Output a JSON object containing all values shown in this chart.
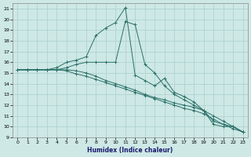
{
  "xlabel": "Humidex (Indice chaleur)",
  "ylabel": "",
  "xlim": [
    -0.5,
    23.5
  ],
  "ylim": [
    9.0,
    21.5
  ],
  "yticks": [
    9,
    10,
    11,
    12,
    13,
    14,
    15,
    16,
    17,
    18,
    19,
    20,
    21
  ],
  "xticks": [
    0,
    1,
    2,
    3,
    4,
    5,
    6,
    7,
    8,
    9,
    10,
    11,
    12,
    13,
    14,
    15,
    16,
    17,
    18,
    19,
    20,
    21,
    22,
    23
  ],
  "bg_color": "#cde8e5",
  "grid_color": "#aacfcc",
  "line_color": "#2a7068",
  "series": [
    {
      "x": [
        0,
        1,
        2,
        3,
        4,
        5,
        6,
        7,
        8,
        9,
        10,
        11,
        12,
        13,
        14,
        15,
        16,
        17,
        18,
        19,
        20,
        21,
        22,
        23
      ],
      "y": [
        15.3,
        15.3,
        15.3,
        15.3,
        15.5,
        16.0,
        16.2,
        16.5,
        18.5,
        19.2,
        19.7,
        21.1,
        14.8,
        14.3,
        13.8,
        14.5,
        13.2,
        12.8,
        12.3,
        11.5,
        10.2,
        10.0,
        10.0,
        9.5
      ]
    },
    {
      "x": [
        0,
        1,
        2,
        3,
        4,
        5,
        6,
        7,
        8,
        9,
        10,
        11,
        12,
        13,
        14,
        15,
        16,
        17,
        18,
        19,
        20,
        21,
        22,
        23
      ],
      "y": [
        15.3,
        15.3,
        15.3,
        15.3,
        15.3,
        15.5,
        15.8,
        16.0,
        16.0,
        16.0,
        16.0,
        19.8,
        19.5,
        15.8,
        15.0,
        13.8,
        13.0,
        12.5,
        12.0,
        11.5,
        10.5,
        10.2,
        10.0,
        9.5
      ]
    },
    {
      "x": [
        0,
        1,
        2,
        3,
        4,
        5,
        6,
        7,
        8,
        9,
        10,
        11,
        12,
        13,
        14,
        15,
        16,
        17,
        18,
        19,
        20,
        21,
        22,
        23
      ],
      "y": [
        15.3,
        15.3,
        15.3,
        15.3,
        15.3,
        15.3,
        15.2,
        15.0,
        14.7,
        14.3,
        14.0,
        13.7,
        13.4,
        13.0,
        12.7,
        12.5,
        12.2,
        12.0,
        11.8,
        11.5,
        11.0,
        10.5,
        10.0,
        9.5
      ]
    },
    {
      "x": [
        0,
        1,
        2,
        3,
        4,
        5,
        6,
        7,
        8,
        9,
        10,
        11,
        12,
        13,
        14,
        15,
        16,
        17,
        18,
        19,
        20,
        21,
        22,
        23
      ],
      "y": [
        15.3,
        15.3,
        15.3,
        15.3,
        15.3,
        15.2,
        14.9,
        14.7,
        14.4,
        14.1,
        13.8,
        13.5,
        13.2,
        12.9,
        12.6,
        12.3,
        12.0,
        11.7,
        11.5,
        11.2,
        10.7,
        10.2,
        9.8,
        9.5
      ]
    }
  ]
}
